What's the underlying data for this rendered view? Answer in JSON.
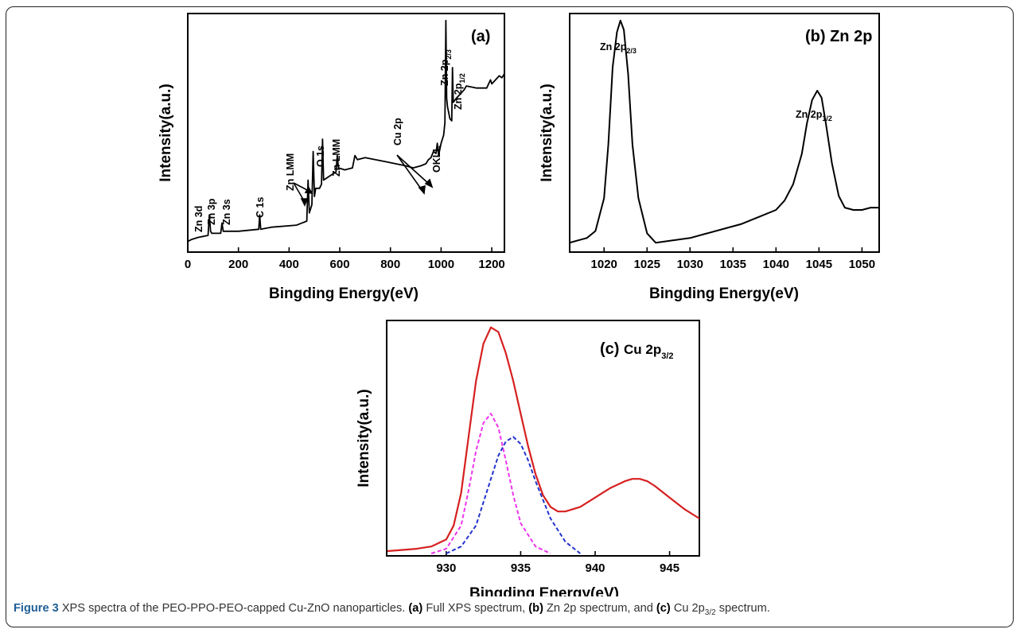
{
  "figure": {
    "caption": {
      "label": "Figure 3",
      "intro": "XPS spectra of the PEO-PPO-PEO-capped Cu-ZnO nanoparticles.",
      "a_tag": "(a)",
      "a_text": "Full XPS spectrum,",
      "b_tag": "(b)",
      "b_text": "Zn 2p spectrum, and",
      "c_tag": "(c)",
      "c_text": "Cu 2p",
      "c_sub": "3/2",
      "c_end": "spectrum."
    }
  },
  "chart_data": [
    {
      "type": "line",
      "panel_label": "(a)",
      "xlabel": "Bingding Energy(eV)",
      "ylabel": "Intensity(a.u.)",
      "xlim": [
        0,
        1250
      ],
      "x_ticks": [
        0,
        200,
        400,
        600,
        800,
        1000,
        1200
      ],
      "y_ticks_shown": false,
      "series": [
        {
          "x": [
            0,
            15,
            40,
            80,
            85,
            90,
            95,
            130,
            135,
            140,
            145,
            200,
            280,
            284,
            288,
            330,
            430,
            470,
            475,
            480,
            490,
            495,
            500,
            505,
            520,
            528,
            532,
            536,
            560,
            585,
            590,
            595,
            620,
            650,
            660,
            670,
            700,
            740,
            780,
            820,
            860,
            890,
            920,
            940,
            950,
            960,
            970,
            980,
            985,
            990,
            1000,
            1010,
            1015,
            1019,
            1022,
            1025,
            1035,
            1042,
            1045,
            1048,
            1060,
            1090,
            1100,
            1140,
            1180,
            1195,
            1200,
            1230,
            1240,
            1250
          ],
          "y": [
            4,
            5,
            6,
            7,
            17,
            9,
            8,
            8,
            13,
            9,
            9,
            9,
            10,
            17,
            10,
            11,
            12,
            14,
            34,
            18,
            22,
            48,
            26,
            30,
            30,
            32,
            54,
            34,
            36,
            38,
            46,
            40,
            39,
            40,
            46,
            44,
            45,
            44,
            43,
            42,
            41,
            40,
            41,
            42,
            44,
            45,
            48,
            47,
            52,
            46,
            52,
            56,
            62,
            112,
            74,
            70,
            64,
            63,
            89,
            72,
            74,
            78,
            80,
            79,
            79,
            83,
            81,
            85,
            84,
            86
          ]
        }
      ],
      "annotations": [
        "Zn 3d",
        "Zn 3p",
        "Zn 3s",
        "C 1s",
        "Zn LMM",
        "O 1s",
        "Zn LMM",
        "Cu 2p",
        "OKLL",
        "Zn 2p2/3",
        "Zn 2p1/2"
      ]
    },
    {
      "type": "line",
      "panel_label": "(b) Zn 2p",
      "xlabel": "Bingding Energy(eV)",
      "ylabel": "Intensity(a.u.)",
      "xlim": [
        1016,
        1052
      ],
      "x_ticks": [
        1020,
        1025,
        1030,
        1035,
        1040,
        1045,
        1050
      ],
      "y_ticks_shown": false,
      "series": [
        {
          "x": [
            1016,
            1017,
            1018,
            1019,
            1020,
            1020.5,
            1021,
            1021.5,
            1021.9,
            1022.3,
            1022.8,
            1023.3,
            1024,
            1025,
            1026,
            1028,
            1030,
            1032,
            1034,
            1036,
            1038,
            1040,
            1041,
            1042,
            1043,
            1043.6,
            1044.2,
            1044.8,
            1045.3,
            1045.8,
            1046.5,
            1047.3,
            1048,
            1049,
            1050,
            1051,
            1052
          ],
          "y": [
            3,
            4,
            5,
            8,
            22,
            45,
            78,
            93,
            98,
            94,
            75,
            45,
            22,
            7,
            3,
            4,
            5,
            7,
            9,
            11,
            14,
            17,
            21,
            28,
            41,
            54,
            64,
            68,
            65,
            54,
            37,
            23,
            18,
            17,
            17,
            18,
            18
          ]
        }
      ],
      "annotations": [
        "Zn 2p2/3",
        "Zn 2p1/2"
      ]
    },
    {
      "type": "line",
      "panel_label": "(c) Cu 2p3/2",
      "xlabel": "Bingding Energy(eV)",
      "ylabel": "Intensity(a.u.)",
      "xlim": [
        926,
        947
      ],
      "x_ticks": [
        930,
        935,
        940,
        945
      ],
      "y_ticks_shown": false,
      "series": [
        {
          "x": [
            926,
            927,
            928,
            929,
            930,
            930.5,
            931,
            931.5,
            932,
            932.5,
            933,
            933.5,
            934,
            934.5,
            935,
            935.5,
            936,
            936.5,
            937,
            937.5,
            938,
            939,
            940,
            941,
            942,
            942.5,
            943,
            943.5,
            944,
            945,
            946,
            947
          ],
          "y": [
            1,
            1.5,
            2,
            3,
            6,
            12,
            26,
            50,
            74,
            90,
            97,
            95,
            86,
            74,
            60,
            46,
            34,
            25,
            20,
            18,
            18,
            20,
            24,
            28,
            31,
            32,
            32,
            31,
            29,
            24,
            19,
            15
          ]
        },
        {
          "x": [
            929,
            930,
            931,
            931.5,
            932,
            932.5,
            933,
            933.5,
            934,
            934.5,
            935,
            936,
            937
          ],
          "y": [
            0,
            2,
            12,
            27,
            44,
            56,
            60,
            54,
            40,
            25,
            13,
            3,
            0
          ]
        },
        {
          "x": [
            930,
            931,
            932,
            933,
            933.5,
            934,
            934.5,
            935,
            935.5,
            936,
            937,
            938,
            939
          ],
          "y": [
            0,
            3,
            12,
            32,
            42,
            48,
            50,
            47,
            40,
            31,
            15,
            5,
            0
          ]
        }
      ]
    }
  ]
}
